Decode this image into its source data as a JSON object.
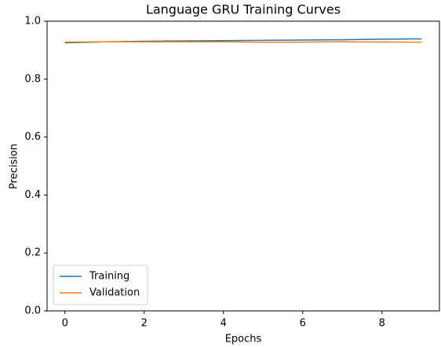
{
  "chart_data": {
    "type": "line",
    "title": "Language GRU Training Curves",
    "x_label": "Epochs",
    "y_label": "Precision",
    "x": [
      0,
      1,
      2,
      3,
      4,
      5,
      6,
      7,
      8,
      9
    ],
    "series": [
      {
        "name": "Training",
        "color": "#1f77b4",
        "values": [
          0.925,
          0.929,
          0.931,
          0.932,
          0.933,
          0.934,
          0.935,
          0.936,
          0.938,
          0.939
        ]
      },
      {
        "name": "Validation",
        "color": "#ff7f0e",
        "values": [
          0.928,
          0.929,
          0.929,
          0.929,
          0.929,
          0.927,
          0.928,
          0.929,
          0.928,
          0.928
        ]
      }
    ],
    "xlim": [
      -0.45,
      9.45
    ],
    "xticks": [
      0,
      2,
      4,
      6,
      8
    ],
    "ylim": [
      0,
      1
    ],
    "yticks": [
      {
        "value": 0,
        "label": "0.0"
      },
      0.2,
      0.4,
      0.6,
      0.8,
      {
        "value": 1,
        "label": "1.0"
      }
    ],
    "legend": "lower left"
  }
}
